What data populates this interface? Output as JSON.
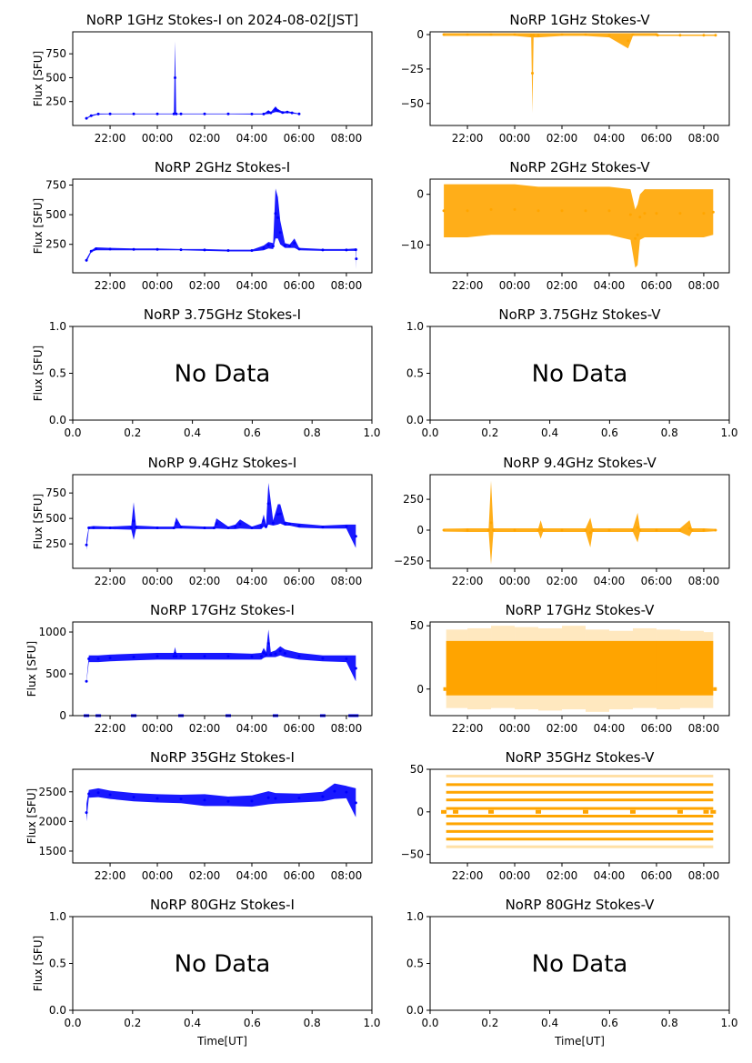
{
  "chart_data": [
    {
      "type": "scatter",
      "id": "1ghz-i",
      "title": "NoRP 1GHz Stokes-I on 2024-08-02[JST]",
      "ylabel": "Flux [SFU]",
      "xlabel": "",
      "color": "#0000ff",
      "no_data": false,
      "xlim_hours": [
        20.42,
        33.08
      ],
      "ylim": [
        0,
        980
      ],
      "xticks": [
        "22:00",
        "00:00",
        "02:00",
        "04:00",
        "06:00",
        "08:00"
      ],
      "yticks": [
        250,
        500,
        750
      ],
      "series": [
        {
          "name": "Stokes-I",
          "x_hours": [
            21.0,
            21.2,
            21.5,
            22.0,
            23.0,
            24.0,
            24.7,
            24.75,
            24.8,
            25.0,
            26.0,
            27.0,
            28.0,
            28.5,
            28.7,
            28.8,
            29.0,
            29.1,
            29.3,
            29.5,
            29.7,
            30.0
          ],
          "y": [
            80,
            110,
            125,
            125,
            125,
            125,
            125,
            880,
            125,
            125,
            125,
            125,
            125,
            125,
            160,
            140,
            200,
            170,
            145,
            150,
            140,
            125
          ],
          "lo": [
            70,
            95,
            115,
            118,
            118,
            118,
            118,
            118,
            118,
            118,
            118,
            118,
            115,
            115,
            120,
            125,
            140,
            140,
            125,
            130,
            125,
            118
          ]
        }
      ]
    },
    {
      "type": "scatter",
      "id": "1ghz-v",
      "title": "NoRP 1GHz Stokes-V",
      "ylabel": "",
      "xlabel": "",
      "color": "#ffa500",
      "no_data": false,
      "xlim_hours": [
        20.42,
        33.08
      ],
      "ylim": [
        -66,
        2
      ],
      "xticks": [
        "22:00",
        "00:00",
        "02:00",
        "04:00",
        "06:00",
        "08:00"
      ],
      "yticks": [
        -50,
        -25,
        0
      ],
      "series": [
        {
          "name": "Stokes-V",
          "x_hours": [
            21.0,
            22.0,
            23.0,
            24.0,
            24.7,
            24.75,
            24.8,
            25.0,
            26.0,
            27.0,
            28.0,
            28.8,
            29.0,
            30.0,
            30.05,
            31.0,
            32.0,
            32.5
          ],
          "y": [
            1,
            1,
            1,
            1,
            1,
            1,
            1,
            1,
            1,
            1,
            1,
            1,
            1,
            1,
            0,
            0,
            0,
            0
          ],
          "lo": [
            -1,
            -1,
            -1,
            -1,
            -2,
            -57,
            -2,
            -2,
            -1,
            -1,
            -2,
            -10,
            -1,
            -1,
            -1,
            -1,
            -1,
            -1
          ]
        }
      ]
    },
    {
      "type": "scatter",
      "id": "2ghz-i",
      "title": "NoRP 2GHz Stokes-I",
      "ylabel": "Flux [SFU]",
      "xlabel": "",
      "color": "#0000ff",
      "no_data": false,
      "xlim_hours": [
        20.42,
        33.08
      ],
      "ylim": [
        10,
        800
      ],
      "xticks": [
        "22:00",
        "00:00",
        "02:00",
        "04:00",
        "06:00",
        "08:00"
      ],
      "yticks": [
        250,
        500,
        750
      ],
      "series": [
        {
          "name": "Stokes-I",
          "x_hours": [
            21.0,
            21.2,
            21.4,
            22.0,
            23.0,
            24.0,
            25.0,
            26.0,
            27.0,
            28.0,
            28.5,
            28.7,
            28.9,
            29.0,
            29.1,
            29.2,
            29.4,
            29.6,
            29.8,
            30.0,
            31.0,
            32.0,
            32.4,
            32.42
          ],
          "y": [
            130,
            200,
            225,
            220,
            215,
            215,
            210,
            210,
            205,
            205,
            240,
            270,
            260,
            720,
            650,
            450,
            260,
            250,
            300,
            220,
            210,
            210,
            215,
            215
          ],
          "lo": [
            100,
            185,
            200,
            200,
            200,
            200,
            200,
            195,
            190,
            190,
            200,
            215,
            210,
            300,
            300,
            250,
            220,
            220,
            220,
            200,
            195,
            195,
            195,
            40
          ]
        }
      ]
    },
    {
      "type": "scatter",
      "id": "2ghz-v",
      "title": "NoRP 2GHz Stokes-V",
      "ylabel": "",
      "xlabel": "",
      "color": "#ffa500",
      "no_data": false,
      "xlim_hours": [
        20.42,
        33.08
      ],
      "ylim": [
        -15.5,
        3
      ],
      "xticks": [
        "22:00",
        "00:00",
        "02:00",
        "04:00",
        "06:00",
        "08:00"
      ],
      "yticks": [
        -10,
        0
      ],
      "series": [
        {
          "name": "Stokes-V",
          "x_hours": [
            21.0,
            22.0,
            23.0,
            24.0,
            25.0,
            26.0,
            27.0,
            28.0,
            28.9,
            29.1,
            29.2,
            29.3,
            29.5,
            30.0,
            31.0,
            32.0,
            32.4
          ],
          "y": [
            2,
            2,
            2,
            2,
            1.5,
            1.5,
            1.5,
            1.5,
            1,
            -3,
            -2,
            0,
            1,
            1,
            1,
            1,
            1
          ],
          "lo": [
            -8.5,
            -8.5,
            -8,
            -8,
            -8,
            -8,
            -8,
            -8,
            -9,
            -14.5,
            -14,
            -9,
            -8.5,
            -8.5,
            -8.5,
            -8.5,
            -8
          ]
        }
      ]
    },
    {
      "type": "scatter",
      "id": "3.75ghz-i",
      "title": "NoRP 3.75GHz Stokes-I",
      "ylabel": "Flux [SFU]",
      "xlabel": "",
      "color": "#0000ff",
      "no_data": true,
      "no_data_text": "No Data",
      "xlim": [
        0,
        1
      ],
      "ylim": [
        0,
        1
      ],
      "xticks": [
        "0.0",
        "0.2",
        "0.4",
        "0.6",
        "0.8",
        "1.0"
      ],
      "yticks": [
        "0.0",
        "0.5",
        "1.0"
      ],
      "series": []
    },
    {
      "type": "scatter",
      "id": "3.75ghz-v",
      "title": "NoRP 3.75GHz Stokes-V",
      "ylabel": "",
      "xlabel": "",
      "color": "#ffa500",
      "no_data": true,
      "no_data_text": "No Data",
      "xlim": [
        0,
        1
      ],
      "ylim": [
        0,
        1
      ],
      "xticks": [
        "0.0",
        "0.2",
        "0.4",
        "0.6",
        "0.8",
        "1.0"
      ],
      "yticks": [
        "0.0",
        "0.5",
        "1.0"
      ],
      "series": []
    },
    {
      "type": "scatter",
      "id": "9.4ghz-i",
      "title": "NoRP 9.4GHz Stokes-I",
      "ylabel": "Flux [SFU]",
      "xlabel": "",
      "color": "#0000ff",
      "no_data": false,
      "xlim_hours": [
        20.42,
        33.08
      ],
      "ylim": [
        10,
        930
      ],
      "xticks": [
        "22:00",
        "00:00",
        "02:00",
        "04:00",
        "06:00",
        "08:00"
      ],
      "yticks": [
        250,
        500,
        750
      ],
      "series": [
        {
          "name": "Stokes-I",
          "x_hours": [
            21.0,
            21.1,
            21.3,
            22.0,
            22.9,
            23.0,
            23.1,
            24.0,
            24.7,
            24.8,
            25.0,
            26.0,
            26.4,
            26.5,
            27.0,
            27.3,
            27.5,
            28.0,
            28.4,
            28.5,
            28.6,
            28.7,
            28.9,
            29.1,
            29.2,
            29.4,
            29.6,
            30.0,
            31.0,
            32.0,
            32.4
          ],
          "y": [
            290,
            420,
            425,
            420,
            430,
            660,
            430,
            420,
            420,
            510,
            430,
            420,
            420,
            500,
            420,
            440,
            490,
            420,
            450,
            540,
            440,
            850,
            480,
            640,
            640,
            470,
            460,
            450,
            430,
            440,
            440
          ],
          "lo": [
            190,
            395,
            395,
            395,
            390,
            290,
            395,
            395,
            395,
            400,
            400,
            395,
            395,
            400,
            395,
            395,
            400,
            395,
            395,
            420,
            400,
            440,
            430,
            440,
            450,
            430,
            430,
            410,
            400,
            400,
            210
          ]
        }
      ]
    },
    {
      "type": "scatter",
      "id": "9.4ghz-v",
      "title": "NoRP 9.4GHz Stokes-V",
      "ylabel": "",
      "xlabel": "",
      "color": "#ffa500",
      "no_data": false,
      "xlim_hours": [
        20.42,
        33.08
      ],
      "ylim": [
        -310,
        450
      ],
      "xticks": [
        "22:00",
        "00:00",
        "02:00",
        "04:00",
        "06:00",
        "08:00"
      ],
      "yticks": [
        -250,
        0,
        250
      ],
      "series": [
        {
          "name": "Stokes-V",
          "x_hours": [
            21.0,
            22.0,
            22.9,
            23.0,
            23.1,
            24.0,
            25.0,
            25.1,
            25.2,
            26.0,
            27.0,
            27.2,
            27.3,
            28.0,
            29.0,
            29.2,
            29.3,
            30.0,
            31.0,
            31.4,
            31.5,
            32.0,
            32.5
          ],
          "y": [
            12,
            15,
            15,
            400,
            15,
            15,
            15,
            80,
            15,
            15,
            15,
            100,
            15,
            15,
            15,
            140,
            15,
            15,
            15,
            80,
            15,
            15,
            10
          ],
          "lo": [
            -12,
            -15,
            -15,
            -280,
            -15,
            -15,
            -15,
            -70,
            -15,
            -15,
            -15,
            -140,
            -15,
            -15,
            -15,
            -100,
            -15,
            -15,
            -15,
            -50,
            -15,
            -15,
            -10
          ]
        }
      ]
    },
    {
      "type": "scatter",
      "id": "17ghz-i",
      "title": "NoRP 17GHz Stokes-I",
      "ylabel": "Flux [SFU]",
      "xlabel": "",
      "color": "#0000ff",
      "no_data": false,
      "xlim_hours": [
        20.42,
        33.08
      ],
      "ylim": [
        0,
        1120
      ],
      "xticks": [
        "22:00",
        "00:00",
        "02:00",
        "04:00",
        "06:00",
        "08:00"
      ],
      "yticks": [
        0,
        500,
        1000
      ],
      "series": [
        {
          "name": "Stokes-I",
          "x_hours": [
            21.0,
            21.1,
            21.5,
            22.0,
            23.0,
            24.0,
            24.7,
            24.75,
            24.8,
            25.0,
            26.0,
            27.0,
            28.0,
            28.4,
            28.5,
            28.6,
            28.7,
            28.8,
            29.0,
            29.2,
            29.4,
            30.0,
            31.0,
            32.0,
            32.4
          ],
          "y": [
            420,
            720,
            720,
            730,
            740,
            750,
            750,
            820,
            750,
            750,
            750,
            750,
            740,
            750,
            810,
            760,
            1030,
            760,
            780,
            830,
            790,
            750,
            720,
            720,
            720
          ],
          "lo": [
            400,
            640,
            640,
            650,
            660,
            670,
            670,
            670,
            670,
            670,
            670,
            670,
            670,
            670,
            690,
            700,
            700,
            700,
            700,
            720,
            700,
            670,
            650,
            640,
            410
          ]
        }
      ],
      "zero_markers_hours": [
        21.0,
        21.5,
        23.0,
        25.0,
        27.0,
        29.0,
        31.0,
        32.2,
        32.4
      ]
    },
    {
      "type": "scatter",
      "id": "17ghz-v",
      "title": "NoRP 17GHz Stokes-V",
      "ylabel": "",
      "xlabel": "",
      "color": "#ffa500",
      "no_data": false,
      "xlim_hours": [
        20.42,
        33.08
      ],
      "ylim": [
        -21,
        53
      ],
      "xticks": [
        "22:00",
        "00:00",
        "02:00",
        "04:00",
        "06:00",
        "08:00"
      ],
      "yticks": [
        0,
        50
      ],
      "series": [
        {
          "name": "Stokes-V",
          "x_hours": [
            21.1,
            22.0,
            23.0,
            24.0,
            25.0,
            26.0,
            27.0,
            28.0,
            29.0,
            30.0,
            31.0,
            32.0,
            32.4
          ],
          "y": [
            47,
            48,
            50,
            49,
            48,
            50,
            47,
            46,
            48,
            47,
            46,
            45,
            44
          ],
          "lo": [
            -15,
            -16,
            -15,
            -16,
            -17,
            -16,
            -18,
            -16,
            -15,
            -16,
            -15,
            -15,
            -14
          ]
        }
      ],
      "dense_band": [
        -5,
        38
      ]
    },
    {
      "type": "scatter",
      "id": "35ghz-i",
      "title": "NoRP 35GHz Stokes-I",
      "ylabel": "Flux [SFU]",
      "xlabel": "",
      "color": "#0000ff",
      "no_data": false,
      "xlim_hours": [
        20.42,
        33.08
      ],
      "ylim": [
        1300,
        2880
      ],
      "xticks": [
        "22:00",
        "00:00",
        "02:00",
        "04:00",
        "06:00",
        "08:00"
      ],
      "yticks": [
        1500,
        2000,
        2500
      ],
      "series": [
        {
          "name": "Stokes-I",
          "x_hours": [
            21.0,
            21.1,
            21.5,
            22.0,
            23.0,
            24.0,
            25.0,
            26.0,
            27.0,
            28.0,
            28.7,
            29.0,
            30.0,
            31.0,
            31.5,
            32.0,
            32.4
          ],
          "y": [
            2300,
            2530,
            2560,
            2520,
            2480,
            2460,
            2450,
            2460,
            2420,
            2440,
            2510,
            2480,
            2470,
            2500,
            2640,
            2600,
            2560
          ],
          "lo": [
            2000,
            2400,
            2410,
            2380,
            2340,
            2320,
            2310,
            2260,
            2260,
            2250,
            2290,
            2300,
            2320,
            2340,
            2380,
            2390,
            2070
          ]
        }
      ]
    },
    {
      "type": "scatter",
      "id": "35ghz-v",
      "title": "NoRP 35GHz Stokes-V",
      "ylabel": "",
      "xlabel": "",
      "color": "#ffa500",
      "no_data": false,
      "xlim_hours": [
        20.42,
        33.08
      ],
      "ylim": [
        -60,
        50
      ],
      "xticks": [
        "22:00",
        "00:00",
        "02:00",
        "04:00",
        "06:00",
        "08:00"
      ],
      "yticks": [
        -50,
        0,
        50
      ],
      "series": [
        {
          "name": "Stokes-V",
          "levels": [
            -41,
            -32,
            -23,
            -14,
            -5,
            4,
            14,
            23,
            32,
            42
          ],
          "x_start_hours": 21.1,
          "x_end_hours": 32.4
        }
      ],
      "zero_markers_hours": [
        21.0,
        21.5,
        23.0,
        25.0,
        27.0,
        29.0,
        31.0,
        32.1,
        32.4
      ]
    },
    {
      "type": "scatter",
      "id": "80ghz-i",
      "title": "NoRP 80GHz Stokes-I",
      "ylabel": "Flux [SFU]",
      "xlabel": "Time[UT]",
      "color": "#0000ff",
      "no_data": true,
      "no_data_text": "No Data",
      "xlim": [
        0,
        1
      ],
      "ylim": [
        0,
        1
      ],
      "xticks": [
        "0.0",
        "0.2",
        "0.4",
        "0.6",
        "0.8",
        "1.0"
      ],
      "yticks": [
        "0.0",
        "0.5",
        "1.0"
      ],
      "series": []
    },
    {
      "type": "scatter",
      "id": "80ghz-v",
      "title": "NoRP 80GHz Stokes-V",
      "ylabel": "",
      "xlabel": "Time[UT]",
      "color": "#ffa500",
      "no_data": true,
      "no_data_text": "No Data",
      "xlim": [
        0,
        1
      ],
      "ylim": [
        0,
        1
      ],
      "xticks": [
        "0.0",
        "0.2",
        "0.4",
        "0.6",
        "0.8",
        "1.0"
      ],
      "yticks": [
        "0.0",
        "0.5",
        "1.0"
      ],
      "series": []
    }
  ]
}
